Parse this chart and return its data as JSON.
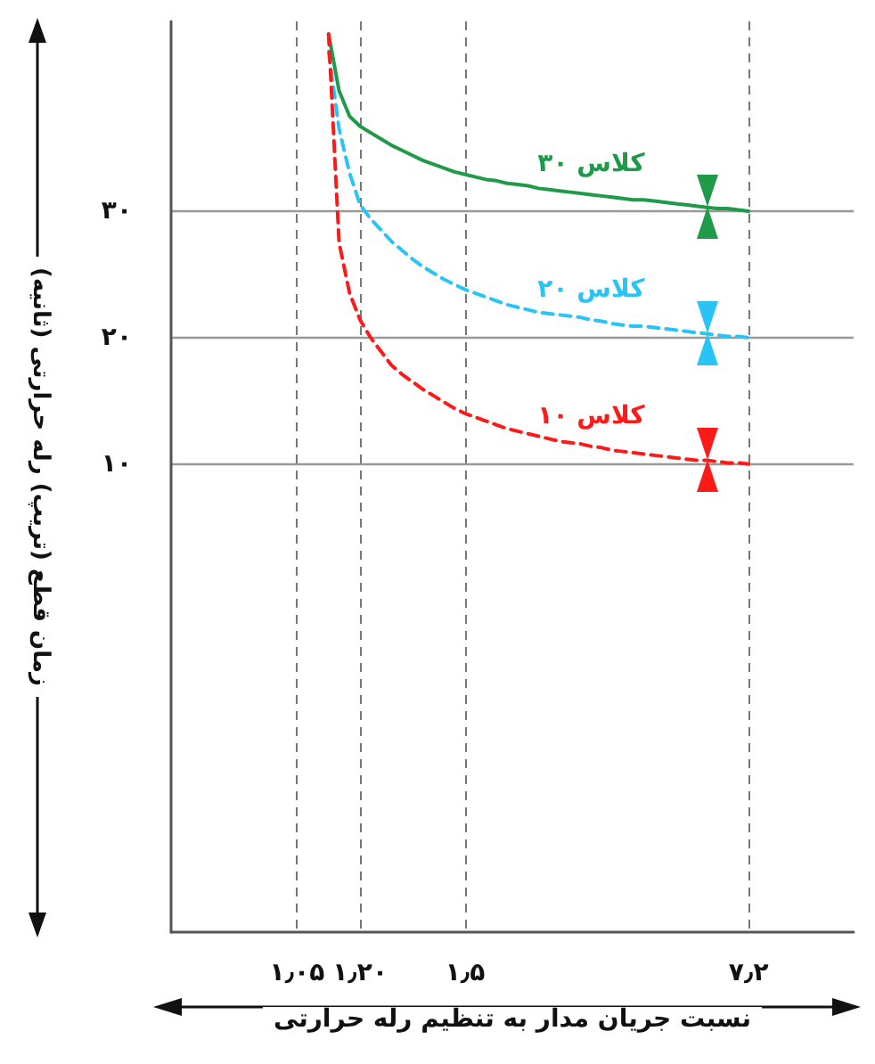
{
  "chart_data": {
    "type": "line",
    "xlabel": "نسبت جریان مدار به تنظیم رله حرارتی",
    "ylabel": "زمان قطع (تریپ) رله حرارتی (ثانیه)",
    "categories": [
      null,
      null,
      null,
      null,
      null,
      null,
      null,
      null,
      null,
      null,
      null,
      null,
      "۱٫۰۵",
      null,
      null,
      null,
      null,
      null,
      "۱٫۲۰",
      null,
      null,
      null,
      null,
      null,
      null,
      null,
      null,
      null,
      "۱٫۵",
      null,
      null,
      null,
      null,
      null,
      null,
      null,
      null,
      null,
      null,
      null,
      null,
      null,
      null,
      null,
      null,
      null,
      null,
      null,
      null,
      null,
      null,
      null,
      null,
      null,
      null,
      "۷٫۲",
      null,
      null,
      null,
      null,
      null,
      null,
      null,
      null,
      null,
      null
    ],
    "ylim": [
      -27,
      45
    ],
    "yticks": [
      {
        "value": 10,
        "label": "۱۰"
      },
      {
        "value": 20,
        "label": "۲۰"
      },
      {
        "value": 30,
        "label": "۳۰"
      }
    ],
    "grid": true,
    "legend": false,
    "marker": "none",
    "series": [
      {
        "name": "کلاس ۳۰",
        "color": "#1f9a48",
        "line_style": "solid",
        "values": [
          null,
          null,
          null,
          null,
          null,
          null,
          null,
          null,
          null,
          null,
          null,
          null,
          null,
          null,
          null,
          44,
          39.5,
          37.5,
          36.7,
          36.2,
          35.7,
          35.2,
          34.8,
          34.4,
          34.0,
          33.7,
          33.4,
          33.1,
          32.9,
          32.7,
          32.5,
          32.4,
          32.2,
          32.1,
          32.0,
          31.8,
          31.7,
          31.6,
          31.5,
          31.4,
          31.3,
          31.2,
          31.1,
          31.0,
          30.9,
          30.9,
          30.8,
          30.7,
          30.6,
          30.5,
          30.4,
          30.3,
          30.2,
          30.2,
          30.1,
          30.0,
          null,
          null,
          null,
          null,
          null,
          null,
          null,
          null,
          null,
          null
        ]
      },
      {
        "name": "کلاس ۲۰",
        "color": "#29c4f5",
        "line_style": "dashed",
        "values": [
          null,
          null,
          null,
          null,
          null,
          null,
          null,
          null,
          null,
          null,
          null,
          null,
          null,
          null,
          null,
          42.6,
          36.5,
          33,
          30.5,
          29.4,
          28.5,
          27.6,
          26.9,
          26.2,
          25.6,
          25.1,
          24.6,
          24.2,
          23.8,
          23.5,
          23.2,
          22.9,
          22.6,
          22.4,
          22.2,
          22.0,
          21.9,
          21.8,
          21.7,
          21.6,
          21.4,
          21.3,
          21.1,
          21.0,
          20.9,
          20.9,
          20.8,
          20.7,
          20.6,
          20.5,
          20.4,
          20.3,
          20.2,
          20.1,
          20.1,
          20.0,
          null,
          null,
          null,
          null,
          null,
          null,
          null,
          null,
          null,
          null
        ]
      },
      {
        "name": "کلاس ۱۰",
        "color": "#ff1a1a",
        "line_style": "dashed",
        "values": [
          null,
          null,
          null,
          null,
          null,
          null,
          null,
          null,
          null,
          null,
          null,
          null,
          null,
          null,
          null,
          44,
          27.5,
          23.5,
          21.4,
          20.0,
          18.9,
          17.8,
          17.1,
          16.5,
          15.9,
          15.4,
          14.9,
          14.4,
          14.0,
          13.7,
          13.4,
          13.1,
          12.8,
          12.6,
          12.4,
          12.2,
          12.0,
          11.8,
          11.7,
          11.6,
          11.4,
          11.3,
          11.1,
          11.0,
          10.9,
          10.8,
          10.7,
          10.6,
          10.5,
          10.4,
          10.3,
          10.3,
          10.2,
          10.1,
          10.1,
          10.0,
          null,
          null,
          null,
          null,
          null,
          null,
          null,
          null,
          null,
          null
        ]
      }
    ]
  }
}
